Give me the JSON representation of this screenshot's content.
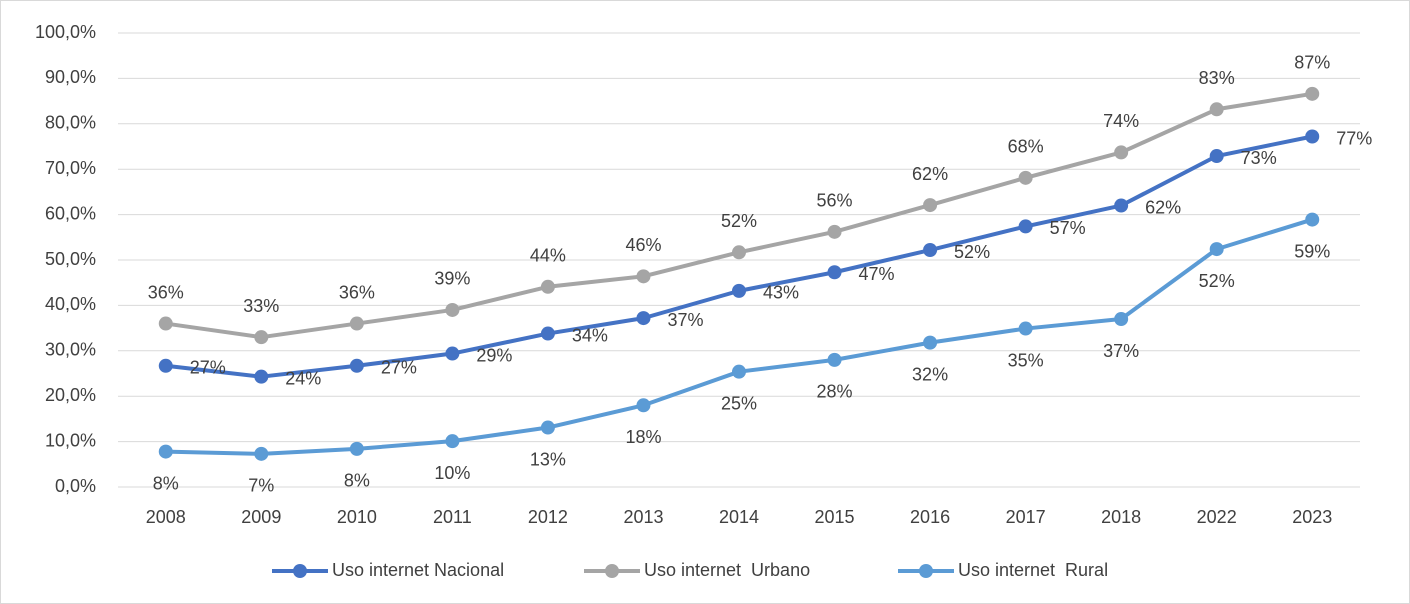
{
  "chart_data": {
    "type": "line",
    "categories": [
      "2008",
      "2009",
      "2010",
      "2011",
      "2012",
      "2013",
      "2014",
      "2015",
      "2016",
      "2017",
      "2018",
      "2022",
      "2023"
    ],
    "series": [
      {
        "name": "Uso internet Nacional",
        "color": "#4472c4",
        "values": [
          26.7,
          24.3,
          26.7,
          29.4,
          33.8,
          37.2,
          43.2,
          47.3,
          52.2,
          57.4,
          62,
          72.9,
          77.2
        ],
        "value_labels": [
          "27%",
          "24%",
          "27%",
          "29%",
          "34%",
          "37%",
          "43%",
          "47%",
          "52%",
          "57%",
          "62%",
          "73%",
          "77%"
        ]
      },
      {
        "name": "Uso internet  Urbano",
        "color": "#a5a5a5",
        "values": [
          36,
          33,
          36,
          39,
          44.1,
          46.4,
          51.7,
          56.2,
          62.1,
          68.1,
          73.7,
          83.2,
          86.6
        ],
        "value_labels": [
          "36%",
          "33%",
          "36%",
          "39%",
          "44%",
          "46%",
          "52%",
          "56%",
          "62%",
          "68%",
          "74%",
          "83%",
          "87%"
        ]
      },
      {
        "name": "Uso internet  Rural",
        "color": "#5b9bd5",
        "values": [
          7.8,
          7.3,
          8.4,
          10.1,
          13.1,
          18,
          25.4,
          28,
          31.8,
          34.9,
          37,
          52.4,
          58.9
        ],
        "value_labels": [
          "8%",
          "7%",
          "8%",
          "10%",
          "13%",
          "18%",
          "25%",
          "28%",
          "32%",
          "35%",
          "37%",
          "52%",
          "59%"
        ]
      }
    ],
    "ylim": [
      0,
      100
    ],
    "yticks": [
      {
        "value": 0,
        "label": "0,0%"
      },
      {
        "value": 10,
        "label": "10,0%"
      },
      {
        "value": 20,
        "label": "20,0%"
      },
      {
        "value": 30,
        "label": "30,0%"
      },
      {
        "value": 40,
        "label": "40,0%"
      },
      {
        "value": 50,
        "label": "50,0%"
      },
      {
        "value": 60,
        "label": "60,0%"
      },
      {
        "value": 70,
        "label": "70,0%"
      },
      {
        "value": 80,
        "label": "80,0%"
      },
      {
        "value": 90,
        "label": "90,0%"
      },
      {
        "value": 100,
        "label": "100,0%"
      }
    ],
    "grid": true,
    "legend": "bottom"
  }
}
